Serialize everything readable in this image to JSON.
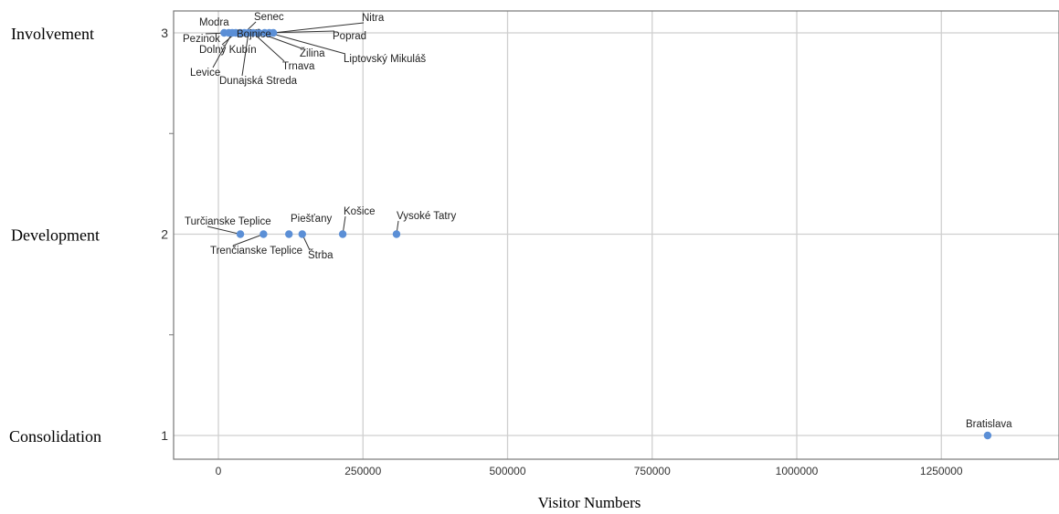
{
  "chart_data": {
    "type": "scatter",
    "xlabel": "Visitor Numbers",
    "ylabel": "",
    "xlim": [
      -75000,
      1460000
    ],
    "ylim": [
      0.9,
      3.12
    ],
    "xticks": [
      "0",
      "250000",
      "500000",
      "750000",
      "1000000",
      "1250000"
    ],
    "xtick_values": [
      0,
      250000,
      500000,
      750000,
      1000000,
      1250000
    ],
    "yticks": [
      "1",
      "2",
      "3"
    ],
    "ytick_values": [
      1,
      2,
      3
    ],
    "y_category_labels": [
      "Consolidation",
      "Development",
      "Involvement"
    ],
    "grid": true,
    "point_color": "#5b8fd6",
    "points": [
      {
        "name": "Modra",
        "x": 10000,
        "y": 3
      },
      {
        "name": "Pezinok",
        "x": 18000,
        "y": 3
      },
      {
        "name": "Levice",
        "x": 24000,
        "y": 3
      },
      {
        "name": "Dolný Kubín",
        "x": 30000,
        "y": 3
      },
      {
        "name": "Bojnice",
        "x": 38000,
        "y": 3
      },
      {
        "name": "Senec",
        "x": 45000,
        "y": 3
      },
      {
        "name": "Dunajská Streda",
        "x": 52000,
        "y": 3
      },
      {
        "name": "Trnava",
        "x": 60000,
        "y": 3
      },
      {
        "name": "Žilina",
        "x": 70000,
        "y": 3
      },
      {
        "name": "Poprad",
        "x": 80000,
        "y": 3
      },
      {
        "name": "Liptovský Mikuláš",
        "x": 88000,
        "y": 3
      },
      {
        "name": "Nitra",
        "x": 95000,
        "y": 3
      },
      {
        "name": "Turčianske Teplice",
        "x": 38000,
        "y": 2
      },
      {
        "name": "Trenčianske Teplice",
        "x": 78000,
        "y": 2
      },
      {
        "name": "Piešťany",
        "x": 122000,
        "y": 2
      },
      {
        "name": "Štrba",
        "x": 145000,
        "y": 2
      },
      {
        "name": "Košice",
        "x": 215000,
        "y": 2
      },
      {
        "name": "Vysoké Tatry",
        "x": 308000,
        "y": 2
      },
      {
        "name": "Bratislava",
        "x": 1330000,
        "y": 1
      }
    ]
  }
}
